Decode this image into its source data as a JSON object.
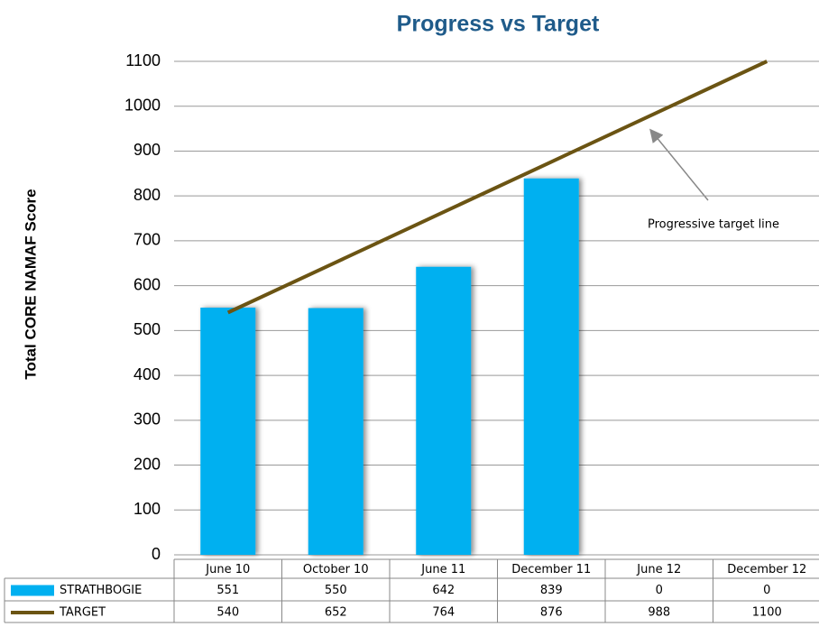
{
  "chart_data": {
    "type": "bar",
    "title": "Progress vs Target",
    "y_axis_label": "Total CORE NAMAF Score",
    "categories": [
      "June 10",
      "October 10",
      "June 11",
      "December 11",
      "June 12",
      "December 12"
    ],
    "series": [
      {
        "name": "STRATHBOGIE",
        "type": "bar",
        "color": "#00b0f0",
        "values": [
          551,
          550,
          642,
          839,
          0,
          0
        ]
      },
      {
        "name": "TARGET",
        "type": "line",
        "color": "#6b5413",
        "values": [
          540,
          652,
          764,
          876,
          988,
          1100
        ]
      }
    ],
    "ylim": [
      0,
      1100
    ],
    "yticks": [
      0,
      100,
      200,
      300,
      400,
      500,
      600,
      700,
      800,
      900,
      1000,
      1100
    ],
    "grid": true,
    "annotations": [
      {
        "text": "Progressive target line"
      }
    ]
  }
}
